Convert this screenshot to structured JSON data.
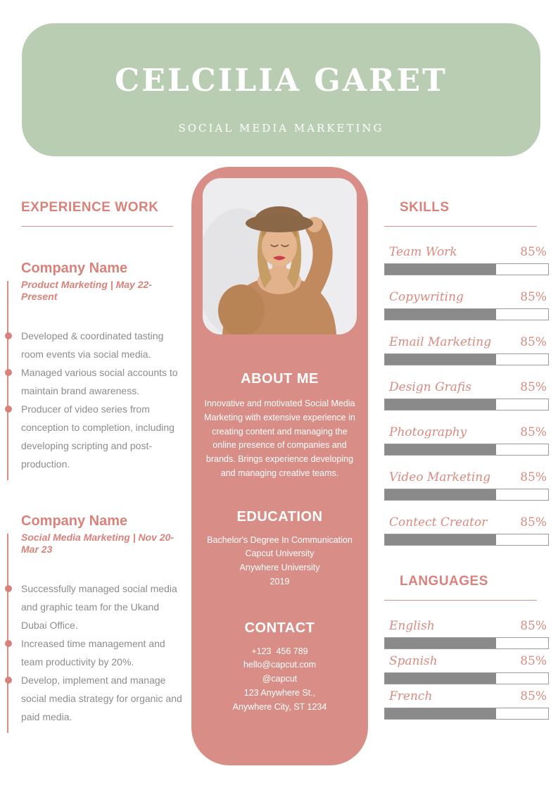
{
  "header": {
    "name": "CELCILIA GARET",
    "subtitle": "SOCIAL MEDIA MARKETING"
  },
  "experience": {
    "title": "EXPERIENCE WORK",
    "jobs": [
      {
        "company": "Company Name",
        "meta": "Product Marketing | May 22-Present",
        "bullets": [
          "Developed & coordinated tasting room events via social media.",
          "Managed various social accounts to maintain brand awareness.",
          "Producer of video series from conception to completion, including developing scripting and post-production."
        ]
      },
      {
        "company": "Company Name",
        "meta": "Social Media Marketing | Nov 20-Mar 23",
        "bullets": [
          "Successfully managed social media and graphic team for the Ukand Dubai Office.",
          "Increased time management and team productivity by 20%.",
          "Develop, implement and manage social media strategy for organic and paid media."
        ]
      }
    ]
  },
  "about": {
    "title": "ABOUT ME",
    "text": "Innovative and motivated Social Media Marketing with extensive experience in creating content and managing the online presence of companies and brands. Brings experience developing and managing creative teams."
  },
  "education": {
    "title": "EDUCATION",
    "lines": [
      "Bachelor's Degree In Communication",
      "Capcut University",
      "Anywhere University",
      "2019"
    ]
  },
  "contact": {
    "title": "CONTACT",
    "lines": [
      "+123  456 789",
      "hello@capcut.com",
      "@capcut",
      "123 Anywhere St.,",
      "Anywhere City, ST 1234"
    ]
  },
  "photo": {
    "description": "portrait of woman wearing brown hat and knitted cardigan"
  },
  "skills": {
    "title": "SKILLS",
    "items": [
      {
        "label": "Team Work",
        "percent": "85%",
        "fill": 68
      },
      {
        "label": "Copywriting",
        "percent": "85%",
        "fill": 68
      },
      {
        "label": "Email Marketing",
        "percent": "85%",
        "fill": 68
      },
      {
        "label": "Design Grafis",
        "percent": "85%",
        "fill": 68
      },
      {
        "label": "Photography",
        "percent": "85%",
        "fill": 68
      },
      {
        "label": "Video Marketing",
        "percent": "85%",
        "fill": 68
      },
      {
        "label": "Contect Creator",
        "percent": "85%",
        "fill": 68
      }
    ]
  },
  "languages": {
    "title": "LANGUAGES",
    "items": [
      {
        "label": "English",
        "percent": "85%",
        "fill": 68
      },
      {
        "label": "Spanish",
        "percent": "85%",
        "fill": 68
      },
      {
        "label": "French",
        "percent": "85%",
        "fill": 68
      }
    ]
  },
  "colors": {
    "header_green": "#b9cdb3",
    "rose_panel": "#d88e86",
    "accent_pink": "#d9827b",
    "serif_label_pink": "#d98b80",
    "bar_fill_gray": "#8a8a8a",
    "body_text_gray": "#8c8c8c"
  }
}
